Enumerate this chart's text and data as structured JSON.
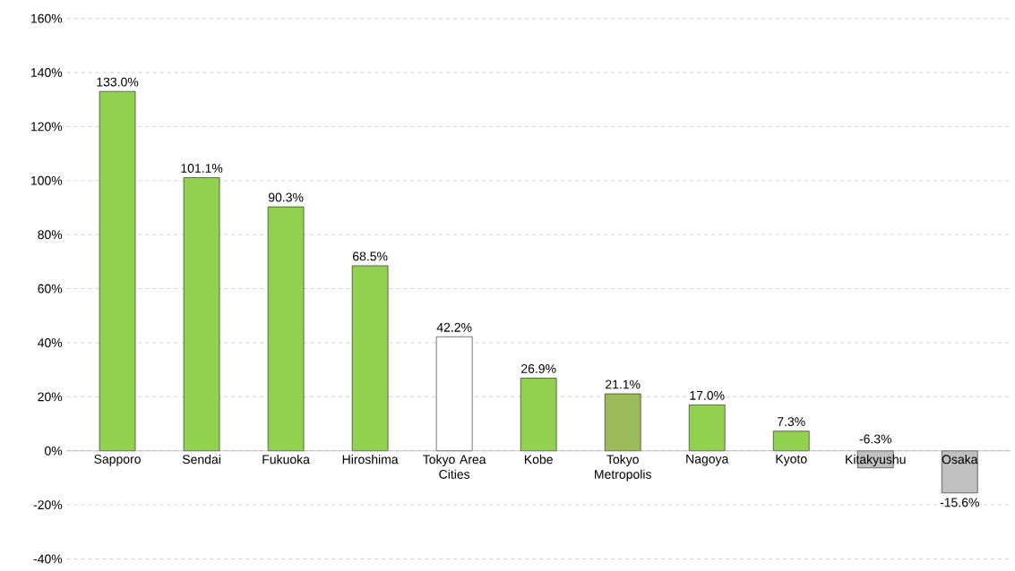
{
  "chart_data": {
    "type": "bar",
    "categories": [
      "Sapporo",
      "Sendai",
      "Fukuoka",
      "Hiroshima",
      "Tokyo Area Cities",
      "Kobe",
      "Tokyo Metropolis",
      "Nagoya",
      "Kyoto",
      "Kitakyushu",
      "Osaka"
    ],
    "values": [
      133.0,
      101.1,
      90.3,
      68.5,
      42.2,
      26.9,
      21.1,
      17.0,
      7.3,
      -6.3,
      -15.6
    ],
    "colors": [
      "#92d050",
      "#92d050",
      "#92d050",
      "#92d050",
      "#ffffff",
      "#92d050",
      "#9bbb59",
      "#92d050",
      "#92d050",
      "#c0c0c0",
      "#c0c0c0"
    ],
    "value_labels": [
      "133.0%",
      "101.1%",
      "90.3%",
      "68.5%",
      "42.2%",
      "26.9%",
      "21.1%",
      "17.0%",
      "7.3%",
      "-6.3%",
      "-15.6%"
    ],
    "ylim": [
      -40,
      160
    ],
    "yticks": [
      {
        "value": -40,
        "label": "-40%"
      },
      {
        "value": -20,
        "label": "-20%"
      },
      {
        "value": 0,
        "label": "0%"
      },
      {
        "value": 20,
        "label": "20%"
      },
      {
        "value": 40,
        "label": "40%"
      },
      {
        "value": 60,
        "label": "60%"
      },
      {
        "value": 80,
        "label": "80%"
      },
      {
        "value": 100,
        "label": "100%"
      },
      {
        "value": 120,
        "label": "120%"
      },
      {
        "value": 140,
        "label": "140%"
      },
      {
        "value": 160,
        "label": "160%"
      }
    ],
    "grid": "y"
  }
}
